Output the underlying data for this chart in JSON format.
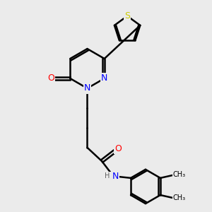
{
  "background_color": "#ebebeb",
  "bond_color": "#000000",
  "bond_width": 1.8,
  "atom_colors": {
    "S": "#cccc00",
    "N": "#0000ff",
    "O": "#ff0000",
    "C": "#000000",
    "H": "#606060"
  },
  "font_size": 8,
  "figsize": [
    3.0,
    3.0
  ],
  "dpi": 100
}
